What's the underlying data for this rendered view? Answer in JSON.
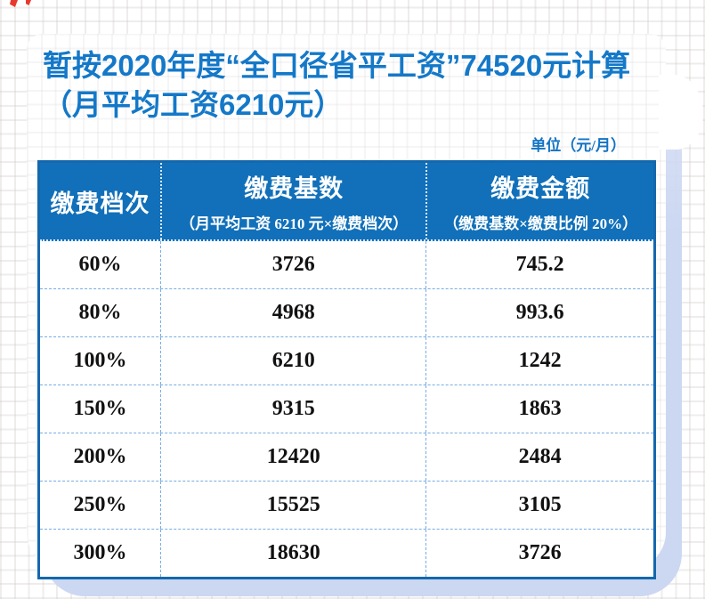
{
  "title": "暂按2020年度“全口径省平工资”74520元计算（月平均工资6210元）",
  "unit_label": "单位（元/月）",
  "table": {
    "columns": [
      {
        "label": "缴费档次",
        "sublabel": ""
      },
      {
        "label": "缴费基数",
        "sublabel": "（月平均工资 6210 元×缴费档次）"
      },
      {
        "label": "缴费金额",
        "sublabel": "（缴费基数×缴费比例 20%）"
      }
    ],
    "rows": [
      {
        "tier": "60%",
        "base": "3726",
        "amount": "745.2"
      },
      {
        "tier": "80%",
        "base": "4968",
        "amount": "993.6"
      },
      {
        "tier": "100%",
        "base": "6210",
        "amount": "1242"
      },
      {
        "tier": "150%",
        "base": "9315",
        "amount": "1863"
      },
      {
        "tier": "200%",
        "base": "12420",
        "amount": "2484"
      },
      {
        "tier": "250%",
        "base": "15525",
        "amount": "3105"
      },
      {
        "tier": "300%",
        "base": "18630",
        "amount": "3726"
      }
    ]
  },
  "chart_data": {
    "type": "table",
    "title": "暂按2020年度“全口径省平工资”74520元计算（月平均工资6210元）",
    "unit": "元/月",
    "columns": [
      "缴费档次",
      "缴费基数（月平均工资 6210 元×缴费档次）",
      "缴费金额（缴费基数×缴费比例 20%）"
    ],
    "rows": [
      [
        "60%",
        3726,
        745.2
      ],
      [
        "80%",
        4968,
        993.6
      ],
      [
        "100%",
        6210,
        1242
      ],
      [
        "150%",
        9315,
        1863
      ],
      [
        "200%",
        12420,
        2484
      ],
      [
        "250%",
        15525,
        3105
      ],
      [
        "300%",
        18630,
        3726
      ]
    ]
  },
  "colors": {
    "title_blue": "#1478c8",
    "header_bg": "#1170b9",
    "table_border": "#1368ad",
    "dashed_separator": "#77ade2",
    "shadow_periwinkle": "#ccd7f2",
    "ribbon_red": "#e8392e"
  }
}
